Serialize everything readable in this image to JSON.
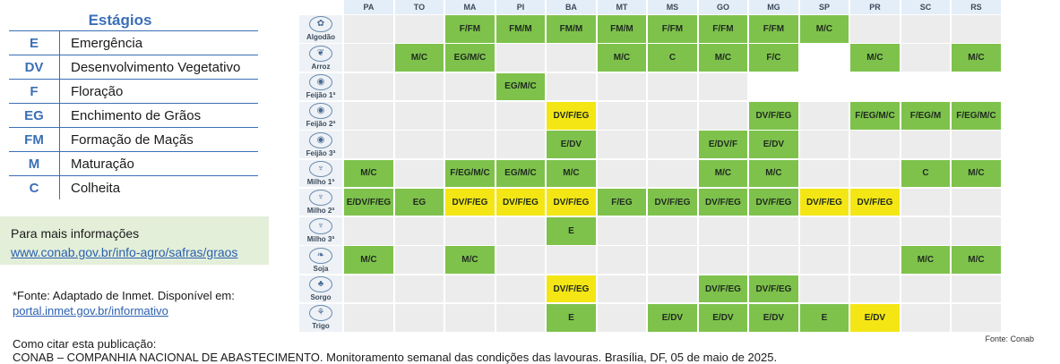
{
  "legend": {
    "title": "Estágios",
    "items": [
      {
        "code": "E",
        "label": "Emergência"
      },
      {
        "code": "DV",
        "label": "Desenvolvimento Vegetativo"
      },
      {
        "code": "F",
        "label": "Floração"
      },
      {
        "code": "EG",
        "label": "Enchimento de Grãos"
      },
      {
        "code": "FM",
        "label": "Formação de Maçãs"
      },
      {
        "code": "M",
        "label": "Maturação"
      },
      {
        "code": "C",
        "label": "Colheita"
      }
    ]
  },
  "info": {
    "title": "Para mais informações",
    "link": "www.conab.gov.br/info-agro/safras/graos"
  },
  "source": {
    "note": "*Fonte: Adaptado de Inmet. Disponível em:",
    "link": "portal.inmet.gov.br/informativo"
  },
  "citation": {
    "label": "Como citar esta publicação:",
    "text": "CONAB – COMPANHIA NACIONAL DE ABASTECIMENTO. Monitoramento semanal das condições das lavouras. Brasília, DF, 05 de maio de 2025."
  },
  "colors": {
    "green": "#7ec24c",
    "yellow": "#f4e614",
    "empty": "#ececec"
  },
  "states": [
    "PA",
    "TO",
    "MA",
    "PI",
    "BA",
    "MT",
    "MS",
    "GO",
    "MG",
    "SP",
    "PR",
    "SC",
    "RS"
  ],
  "crops": [
    {
      "name": "Algodão",
      "icon": "cotton-icon",
      "cells": [
        [
          "",
          ""
        ],
        [
          "",
          ""
        ],
        [
          "F/FM",
          "g"
        ],
        [
          "FM/M",
          "g"
        ],
        [
          "FM/M",
          "g"
        ],
        [
          "FM/M",
          "g"
        ],
        [
          "F/FM",
          "g"
        ],
        [
          "F/FM",
          "g"
        ],
        [
          "F/FM",
          "g"
        ],
        [
          "M/C",
          "g"
        ],
        [
          "",
          ""
        ],
        [
          "",
          ""
        ],
        [
          "",
          ""
        ]
      ]
    },
    {
      "name": "Arroz",
      "icon": "rice-icon",
      "cells": [
        [
          "",
          ""
        ],
        [
          "M/C",
          "g"
        ],
        [
          "EG/M/C",
          "g"
        ],
        [
          "",
          ""
        ],
        [
          "",
          ""
        ],
        [
          "M/C",
          "g"
        ],
        [
          "C",
          "g"
        ],
        [
          "M/C",
          "g"
        ],
        [
          "F/C",
          "g"
        ],
        [
          "",
          "w"
        ],
        [
          "M/C",
          "g"
        ],
        [
          "",
          ""
        ],
        [
          "M/C",
          "g"
        ]
      ]
    },
    {
      "name": "Feijão 1ª",
      "icon": "bean-icon",
      "cells": [
        [
          "",
          ""
        ],
        [
          "",
          ""
        ],
        [
          "",
          ""
        ],
        [
          "EG/M/C",
          "g"
        ],
        [
          "",
          ""
        ],
        [
          "",
          ""
        ],
        [
          "",
          ""
        ],
        [
          "",
          ""
        ],
        [
          "",
          "w"
        ],
        [
          "",
          "w"
        ],
        [
          "",
          "w"
        ],
        [
          "",
          "w"
        ],
        [
          "",
          "w"
        ]
      ]
    },
    {
      "name": "Feijão 2ª",
      "icon": "bean-icon",
      "cells": [
        [
          "",
          ""
        ],
        [
          "",
          ""
        ],
        [
          "",
          ""
        ],
        [
          "",
          ""
        ],
        [
          "DV/F/EG",
          "y"
        ],
        [
          "",
          ""
        ],
        [
          "",
          ""
        ],
        [
          "",
          ""
        ],
        [
          "DV/F/EG",
          "g"
        ],
        [
          "",
          ""
        ],
        [
          "F/EG/M/C",
          "g"
        ],
        [
          "F/EG/M",
          "g"
        ],
        [
          "F/EG/M/C",
          "g"
        ]
      ]
    },
    {
      "name": "Feijão 3ª",
      "icon": "bean-icon",
      "cells": [
        [
          "",
          ""
        ],
        [
          "",
          ""
        ],
        [
          "",
          ""
        ],
        [
          "",
          ""
        ],
        [
          "E/DV",
          "g"
        ],
        [
          "",
          ""
        ],
        [
          "",
          ""
        ],
        [
          "E/DV/F",
          "g"
        ],
        [
          "E/DV",
          "g"
        ],
        [
          "",
          ""
        ],
        [
          "",
          ""
        ],
        [
          "",
          ""
        ],
        [
          "",
          ""
        ]
      ]
    },
    {
      "name": "Milho 1ª",
      "icon": "corn-icon",
      "cells": [
        [
          "M/C",
          "g"
        ],
        [
          "",
          ""
        ],
        [
          "F/EG/M/C",
          "g"
        ],
        [
          "EG/M/C",
          "g"
        ],
        [
          "M/C",
          "g"
        ],
        [
          "",
          ""
        ],
        [
          "",
          ""
        ],
        [
          "M/C",
          "g"
        ],
        [
          "M/C",
          "g"
        ],
        [
          "",
          ""
        ],
        [
          "",
          ""
        ],
        [
          "C",
          "g"
        ],
        [
          "M/C",
          "g"
        ]
      ]
    },
    {
      "name": "Milho 2ª",
      "icon": "corn-icon",
      "cells": [
        [
          "E/DV/F/EG",
          "g"
        ],
        [
          "EG",
          "g"
        ],
        [
          "DV/F/EG",
          "y"
        ],
        [
          "DV/F/EG",
          "y"
        ],
        [
          "DV/F/EG",
          "y"
        ],
        [
          "F/EG",
          "g"
        ],
        [
          "DV/F/EG",
          "g"
        ],
        [
          "DV/F/EG",
          "g"
        ],
        [
          "DV/F/EG",
          "g"
        ],
        [
          "DV/F/EG",
          "y"
        ],
        [
          "DV/F/EG",
          "y"
        ],
        [
          "",
          ""
        ],
        [
          "",
          ""
        ]
      ]
    },
    {
      "name": "Milho 3ª",
      "icon": "corn-icon",
      "cells": [
        [
          "",
          ""
        ],
        [
          "",
          ""
        ],
        [
          "",
          ""
        ],
        [
          "",
          ""
        ],
        [
          "E",
          "g"
        ],
        [
          "",
          ""
        ],
        [
          "",
          ""
        ],
        [
          "",
          ""
        ],
        [
          "",
          ""
        ],
        [
          "",
          ""
        ],
        [
          "",
          ""
        ],
        [
          "",
          ""
        ],
        [
          "",
          ""
        ]
      ]
    },
    {
      "name": "Soja",
      "icon": "soy-icon",
      "cells": [
        [
          "M/C",
          "g"
        ],
        [
          "",
          ""
        ],
        [
          "M/C",
          "g"
        ],
        [
          "",
          ""
        ],
        [
          "",
          ""
        ],
        [
          "",
          ""
        ],
        [
          "",
          ""
        ],
        [
          "",
          ""
        ],
        [
          "",
          ""
        ],
        [
          "",
          ""
        ],
        [
          "",
          ""
        ],
        [
          "M/C",
          "g"
        ],
        [
          "M/C",
          "g"
        ]
      ]
    },
    {
      "name": "Sorgo",
      "icon": "sorghum-icon",
      "cells": [
        [
          "",
          ""
        ],
        [
          "",
          ""
        ],
        [
          "",
          ""
        ],
        [
          "",
          ""
        ],
        [
          "DV/F/EG",
          "y"
        ],
        [
          "",
          ""
        ],
        [
          "",
          ""
        ],
        [
          "DV/F/EG",
          "g"
        ],
        [
          "DV/F/EG",
          "g"
        ],
        [
          "",
          ""
        ],
        [
          "",
          ""
        ],
        [
          "",
          ""
        ],
        [
          "",
          ""
        ]
      ]
    },
    {
      "name": "Trigo",
      "icon": "wheat-icon",
      "cells": [
        [
          "",
          ""
        ],
        [
          "",
          ""
        ],
        [
          "",
          ""
        ],
        [
          "",
          ""
        ],
        [
          "E",
          "g"
        ],
        [
          "",
          ""
        ],
        [
          "E/DV",
          "g"
        ],
        [
          "E/DV",
          "g"
        ],
        [
          "E/DV",
          "g"
        ],
        [
          "E",
          "g"
        ],
        [
          "E/DV",
          "y"
        ],
        [
          "",
          ""
        ],
        [
          "",
          ""
        ]
      ]
    }
  ],
  "fonte": "Fonte: Conab"
}
